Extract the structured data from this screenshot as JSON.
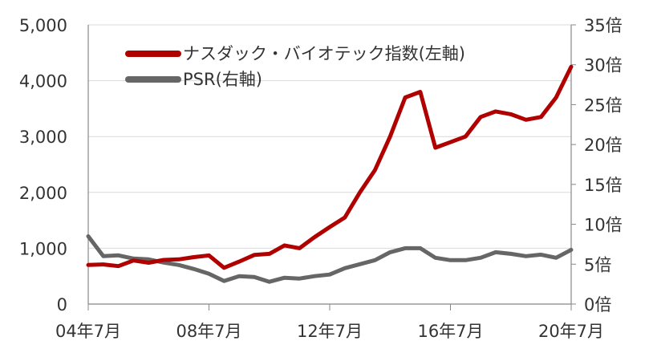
{
  "chart_data": {
    "type": "line",
    "title": "",
    "xlabel": "",
    "ylabel": "",
    "x_ticks": [
      "04年7月",
      "08年7月",
      "12年7月",
      "16年7月",
      "20年7月"
    ],
    "y_left": {
      "min": 0,
      "max": 5000,
      "ticks": [
        0,
        1000,
        2000,
        3000,
        4000,
        5000
      ],
      "tick_labels": [
        "0",
        "1,000",
        "2,000",
        "3,000",
        "4,000",
        "5,000"
      ]
    },
    "y_right": {
      "min": 0,
      "max": 35,
      "ticks": [
        0,
        5,
        10,
        15,
        20,
        25,
        30,
        35
      ],
      "tick_labels": [
        "0倍",
        "5倍",
        "10倍",
        "15倍",
        "20倍",
        "25倍",
        "30倍",
        "35倍"
      ]
    },
    "grid": "horizontal",
    "legend_position": "top-left",
    "x_dates": [
      "2004-07",
      "2005-01",
      "2005-07",
      "2006-01",
      "2006-07",
      "2007-01",
      "2007-07",
      "2008-01",
      "2008-07",
      "2009-01",
      "2009-07",
      "2010-01",
      "2010-07",
      "2011-01",
      "2011-07",
      "2012-01",
      "2012-07",
      "2013-01",
      "2013-07",
      "2014-01",
      "2014-07",
      "2015-01",
      "2015-07",
      "2016-01",
      "2016-07",
      "2017-01",
      "2017-07",
      "2018-01",
      "2018-07",
      "2019-01",
      "2019-07",
      "2020-01",
      "2020-07"
    ],
    "series": [
      {
        "name": "ナスダック・バイオテック指数(左軸)",
        "axis": "left",
        "color": "#b00000",
        "values": [
          700,
          710,
          680,
          780,
          740,
          790,
          800,
          840,
          870,
          650,
          760,
          880,
          900,
          1050,
          1000,
          1200,
          1380,
          1550,
          2000,
          2400,
          3000,
          3700,
          3800,
          2800,
          2900,
          3000,
          3350,
          3450,
          3400,
          3300,
          3350,
          3700,
          4250
        ]
      },
      {
        "name": "PSR(右軸)",
        "axis": "right",
        "color": "#666666",
        "values": [
          8.5,
          6.0,
          6.1,
          5.7,
          5.6,
          5.2,
          4.9,
          4.4,
          3.8,
          2.9,
          3.5,
          3.4,
          2.8,
          3.3,
          3.2,
          3.5,
          3.7,
          4.5,
          5.0,
          5.5,
          6.5,
          7.0,
          7.0,
          5.8,
          5.5,
          5.5,
          5.8,
          6.5,
          6.3,
          6.0,
          6.2,
          5.8,
          6.8
        ]
      }
    ]
  }
}
